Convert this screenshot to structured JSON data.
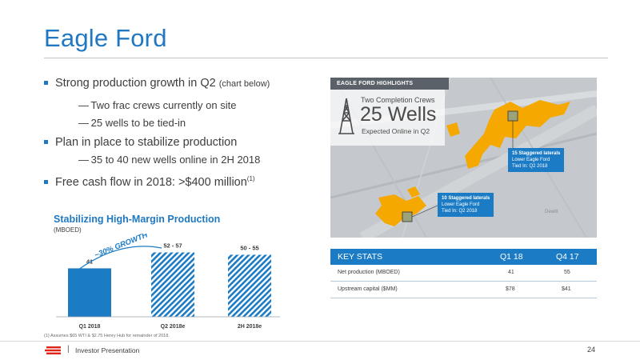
{
  "page": {
    "title": "Eagle Ford",
    "footer_text": "Investor Presentation",
    "footer_sep": "|",
    "page_number": "24"
  },
  "bullets": [
    {
      "text": "Strong production growth in Q2",
      "note": "(chart below)"
    },
    {
      "text": "Plan in place to stabilize production"
    },
    {
      "text": "Free cash flow in 2018: >$400 million",
      "sup": "(1)"
    }
  ],
  "sub_bullets": [
    "Two frac crews currently on site",
    "25 wells to be tied-in",
    "35 to 40 new wells online in 2H 2018"
  ],
  "sub_dash": "—",
  "chart_section": {
    "title": "Stabilizing High-Margin Production",
    "units": "(MBOED)",
    "growth_label": "~30% GROWTH",
    "footnote": "(1) Assumes $65 WTI & $2.75 Henry Hub for remainder of 2018."
  },
  "chart_data": {
    "type": "bar",
    "categories": [
      "Q1 2018",
      "Q2 2018e",
      "2H 2018e"
    ],
    "values": [
      41,
      54.5,
      52.5
    ],
    "ranges": [
      null,
      [
        52,
        57
      ],
      [
        50,
        55
      ]
    ],
    "data_labels": [
      "41",
      "52 - 57",
      "50 - 55"
    ],
    "title": "Stabilizing High-Margin Production",
    "ylabel": "",
    "ylim": [
      0,
      65
    ],
    "bar_styles": [
      "solid",
      "hatched",
      "hatched"
    ],
    "color": "#1b7bc4",
    "grid": false
  },
  "map": {
    "header": "EAGLE FORD HIGHLIGHTS",
    "crews_label": "Two Completion Crews",
    "wells_count": "25 Wells",
    "wells_sub": "Expected Online in Q2",
    "callouts": [
      {
        "title": "15 Staggered laterals",
        "line1": "Lower Eagle Ford",
        "line2": "Tied In: Q2 2018"
      },
      {
        "title": "10 Staggered laterals",
        "line1": "Lower Eagle Ford",
        "line2": "Tied In: Q2 2018"
      }
    ],
    "county_label": "Dewitt",
    "icon": "oil-derrick-icon"
  },
  "key_stats": {
    "headers": [
      "KEY STATS",
      "Q1 18",
      "Q4 17"
    ],
    "rows": [
      [
        "Net production (MBOED)",
        "41",
        "55"
      ],
      [
        "Upstream capital ($MM)",
        "$78",
        "$41"
      ]
    ]
  },
  "colors": {
    "accent": "#1f78c1",
    "acreage": "#f5a800",
    "header_gray": "#5a6169"
  }
}
